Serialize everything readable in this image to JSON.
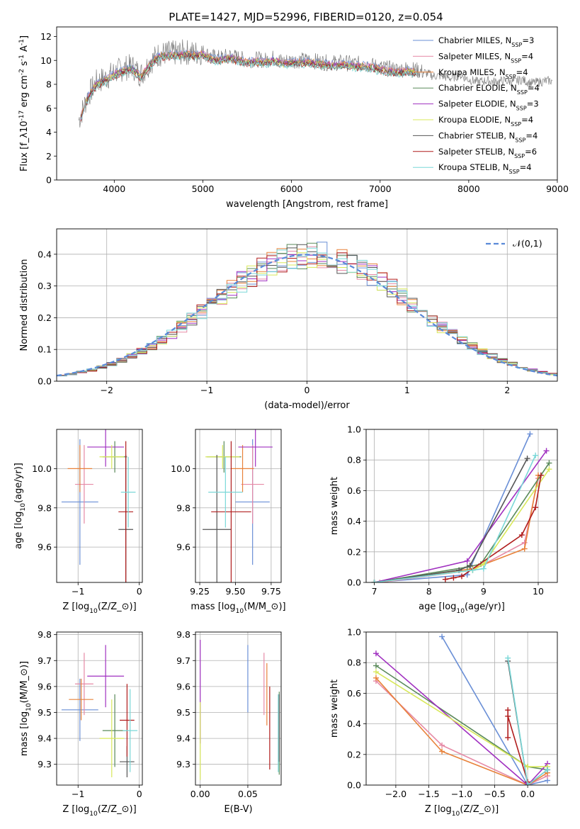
{
  "figure_title": "PLATE=1427, MJD=52996, FIBERID=0120, z=0.054",
  "models": [
    {
      "label": "Chabrier MILES, N$_{SSP}$=3",
      "color": "#6a8fd6"
    },
    {
      "label": "Salpeter MILES, N$_{SSP}$=4",
      "color": "#e68aa6"
    },
    {
      "label": "Kroupa MILES, N$_{SSP}$=4",
      "color": "#e8823a"
    },
    {
      "label": "Chabrier ELODIE, N$_{SSP}$=4",
      "color": "#5a8a5a"
    },
    {
      "label": "Salpeter ELODIE, N$_{SSP}$=3",
      "color": "#a030c0"
    },
    {
      "label": "Kroupa ELODIE, N$_{SSP}$=4",
      "color": "#d8e85a"
    },
    {
      "label": "Chabrier STELIB, N$_{SSP}$=4",
      "color": "#555555"
    },
    {
      "label": "Salpeter STELIB, N$_{SSP}$=6",
      "color": "#b01c1c"
    },
    {
      "label": "Kroupa STELIB, N$_{SSP}$=4",
      "color": "#7ad8d8"
    }
  ],
  "chart_data": [
    {
      "id": "spectrum",
      "type": "line",
      "xlabel": "wavelength [Angstrom, rest frame]",
      "ylabel": "Flux [f$_\\lambda$10$^{-17}$ erg cm$^{-2}$ s$^{-1}$ A$^{-1}$]",
      "xlim": [
        3350,
        9000
      ],
      "ylim": [
        0,
        12.8
      ],
      "xticks": [
        4000,
        5000,
        6000,
        7000,
        8000,
        9000
      ],
      "yticks": [
        0,
        2,
        4,
        6,
        8,
        10,
        12
      ],
      "legend": "top-right",
      "spectrum_points": [
        [
          3600,
          5.0
        ],
        [
          3650,
          6.0
        ],
        [
          3700,
          7.0
        ],
        [
          3800,
          8.2
        ],
        [
          3900,
          8.5
        ],
        [
          4000,
          9.0
        ],
        [
          4100,
          9.3
        ],
        [
          4200,
          9.5
        ],
        [
          4300,
          8.8
        ],
        [
          4400,
          9.8
        ],
        [
          4500,
          10.5
        ],
        [
          4600,
          10.6
        ],
        [
          4700,
          10.6
        ],
        [
          4800,
          10.7
        ],
        [
          4900,
          10.6
        ],
        [
          5000,
          10.7
        ],
        [
          5100,
          10.3
        ],
        [
          5200,
          10.2
        ],
        [
          5300,
          10.4
        ],
        [
          5400,
          10.2
        ],
        [
          5500,
          10.0
        ],
        [
          5600,
          10.1
        ],
        [
          5700,
          10.0
        ],
        [
          5800,
          10.2
        ],
        [
          5900,
          9.9
        ],
        [
          6000,
          10.0
        ],
        [
          6100,
          10.0
        ],
        [
          6200,
          10.0
        ],
        [
          6300,
          9.9
        ],
        [
          6400,
          9.8
        ],
        [
          6500,
          9.8
        ],
        [
          6600,
          9.8
        ],
        [
          6700,
          9.7
        ],
        [
          6800,
          9.7
        ],
        [
          6900,
          9.6
        ],
        [
          7000,
          9.4
        ],
        [
          7100,
          9.3
        ],
        [
          7200,
          9.2
        ],
        [
          7300,
          9.3
        ],
        [
          7400,
          9.2
        ],
        [
          7500,
          9.0
        ],
        [
          7600,
          8.7
        ],
        [
          7700,
          8.7
        ],
        [
          7800,
          8.5
        ],
        [
          7900,
          8.8
        ],
        [
          8000,
          8.4
        ],
        [
          8100,
          8.2
        ],
        [
          8200,
          8.3
        ],
        [
          8300,
          8.2
        ],
        [
          8400,
          8.3
        ],
        [
          8500,
          8.2
        ],
        [
          8600,
          8.4
        ],
        [
          8700,
          8.1
        ],
        [
          8800,
          8.2
        ],
        [
          8900,
          8.3
        ]
      ]
    },
    {
      "id": "residuals",
      "type": "line",
      "xlabel": "(data-model)/error",
      "ylabel": "Normed distribution",
      "xlim": [
        -2.5,
        2.5
      ],
      "ylim": [
        0,
        0.48
      ],
      "xticks": [
        -2,
        -1,
        0,
        1,
        2
      ],
      "yticks": [
        0.0,
        0.1,
        0.2,
        0.3,
        0.4
      ],
      "grid": true,
      "legend": "top-right",
      "legend_label": "$\\mathcal{N}(0,1)$",
      "curve_color": "#5a8ad8",
      "bin_width": 0.1
    },
    {
      "id": "age_vs_Z",
      "type": "scatter",
      "xlabel": "Z [log$_{10}$(Z/Z$_\\odot$)]",
      "ylabel": "age  [log$_{10}$(age/yr)]",
      "xlim": [
        -1.35,
        0.05
      ],
      "ylim": [
        9.42,
        10.2
      ],
      "xticks": [
        -1,
        0
      ],
      "yticks": [
        9.6,
        9.8,
        10.0
      ],
      "grid": true,
      "points": [
        {
          "model": 0,
          "x": -0.97,
          "y": 9.83,
          "xerr": 0.3,
          "yerr": 0.32
        },
        {
          "model": 1,
          "x": -0.9,
          "y": 9.92,
          "xerr": 0.15,
          "yerr": 0.2
        },
        {
          "model": 2,
          "x": -0.97,
          "y": 10.0,
          "xerr": 0.2,
          "yerr": 0.12
        },
        {
          "model": 3,
          "x": -0.4,
          "y": 10.06,
          "xerr": 0.2,
          "yerr": 0.08
        },
        {
          "model": 4,
          "x": -0.55,
          "y": 10.11,
          "xerr": 0.3,
          "yerr": 0.1
        },
        {
          "model": 5,
          "x": -0.45,
          "y": 10.06,
          "xerr": 0.2,
          "yerr": 0.06
        },
        {
          "model": 6,
          "x": -0.22,
          "y": 9.69,
          "xerr": 0.12,
          "yerr": 0.38
        },
        {
          "model": 7,
          "x": -0.22,
          "y": 9.78,
          "xerr": 0.12,
          "yerr": 0.36
        },
        {
          "model": 8,
          "x": -0.18,
          "y": 9.88,
          "xerr": 0.12,
          "yerr": 0.18
        }
      ]
    },
    {
      "id": "age_vs_mass",
      "type": "scatter",
      "xlabel": "mass [log$_{10}$(M/M$_\\odot$)]",
      "ylabel": "",
      "xlim": [
        9.22,
        9.82
      ],
      "ylim": [
        9.42,
        10.2
      ],
      "xticks": [
        9.25,
        9.5,
        9.75
      ],
      "yticks": [
        9.6,
        9.8,
        10.0
      ],
      "ytick_labels_shown": true,
      "grid": true,
      "points": [
        {
          "model": 0,
          "x": 9.62,
          "y": 9.83,
          "xerr": 0.12,
          "yerr": 0.32
        },
        {
          "model": 1,
          "x": 9.62,
          "y": 9.92,
          "xerr": 0.08,
          "yerr": 0.2
        },
        {
          "model": 2,
          "x": 9.55,
          "y": 10.0,
          "xerr": 0.08,
          "yerr": 0.12
        },
        {
          "model": 3,
          "x": 9.42,
          "y": 10.06,
          "xerr": 0.12,
          "yerr": 0.08
        },
        {
          "model": 4,
          "x": 9.64,
          "y": 10.11,
          "xerr": 0.12,
          "yerr": 0.1
        },
        {
          "model": 5,
          "x": 9.41,
          "y": 10.06,
          "xerr": 0.12,
          "yerr": 0.06
        },
        {
          "model": 6,
          "x": 9.37,
          "y": 9.69,
          "xerr": 0.1,
          "yerr": 0.38
        },
        {
          "model": 7,
          "x": 9.47,
          "y": 9.78,
          "xerr": 0.14,
          "yerr": 0.36
        },
        {
          "model": 8,
          "x": 9.43,
          "y": 9.88,
          "xerr": 0.12,
          "yerr": 0.18
        }
      ]
    },
    {
      "id": "massweight_vs_age",
      "type": "line",
      "xlabel": "age  [log$_{10}$(age/yr)]",
      "ylabel": "mass weight",
      "xlim": [
        6.85,
        10.35
      ],
      "ylim": [
        0,
        1.0
      ],
      "xticks": [
        7,
        8,
        9,
        10
      ],
      "yticks": [
        0.0,
        0.2,
        0.4,
        0.6,
        0.8,
        1.0
      ],
      "grid": true,
      "series": [
        {
          "model": 0,
          "x": [
            7.0,
            8.7,
            9.85
          ],
          "y": [
            0.0,
            0.05,
            0.97
          ]
        },
        {
          "model": 1,
          "x": [
            7.1,
            8.8,
            9.75,
            10.0
          ],
          "y": [
            0.0,
            0.08,
            0.26,
            0.68
          ]
        },
        {
          "model": 2,
          "x": [
            7.0,
            8.8,
            9.75,
            10.0
          ],
          "y": [
            0.0,
            0.09,
            0.22,
            0.7
          ]
        },
        {
          "model": 3,
          "x": [
            7.0,
            8.7,
            8.95,
            10.2
          ],
          "y": [
            0.0,
            0.1,
            0.12,
            0.78
          ]
        },
        {
          "model": 4,
          "x": [
            7.0,
            8.7,
            10.15
          ],
          "y": [
            0.0,
            0.14,
            0.86
          ]
        },
        {
          "model": 5,
          "x": [
            7.0,
            8.8,
            9.0,
            10.2
          ],
          "y": [
            0.0,
            0.08,
            0.12,
            0.74
          ]
        },
        {
          "model": 6,
          "x": [
            7.0,
            8.55,
            8.75,
            9.8
          ],
          "y": [
            0.0,
            0.08,
            0.11,
            0.81
          ]
        },
        {
          "model": 7,
          "x": [
            8.3,
            8.45,
            8.6,
            9.7,
            9.95,
            10.05
          ],
          "y": [
            0.02,
            0.03,
            0.04,
            0.31,
            0.49,
            0.7
          ]
        },
        {
          "model": 8,
          "x": [
            7.0,
            8.8,
            9.0,
            9.95
          ],
          "y": [
            0.0,
            0.08,
            0.09,
            0.83
          ]
        }
      ]
    },
    {
      "id": "mass_vs_Z",
      "type": "scatter",
      "xlabel": "Z [log$_{10}$(Z/Z$_\\odot$)]",
      "ylabel": "mass [log$_{10}$(M/M$_\\odot$)]",
      "xlim": [
        -1.35,
        0.05
      ],
      "ylim": [
        9.22,
        9.81
      ],
      "xticks": [
        -1,
        0
      ],
      "yticks": [
        9.3,
        9.4,
        9.5,
        9.6,
        9.7,
        9.8
      ],
      "grid": true,
      "points": [
        {
          "model": 0,
          "x": -0.97,
          "y": 9.51,
          "xerr": 0.3,
          "yerr": 0.12
        },
        {
          "model": 1,
          "x": -0.9,
          "y": 9.61,
          "xerr": 0.15,
          "yerr": 0.12
        },
        {
          "model": 2,
          "x": -0.95,
          "y": 9.55,
          "xerr": 0.2,
          "yerr": 0.08
        },
        {
          "model": 3,
          "x": -0.4,
          "y": 9.43,
          "xerr": 0.2,
          "yerr": 0.14
        },
        {
          "model": 4,
          "x": -0.55,
          "y": 9.64,
          "xerr": 0.3,
          "yerr": 0.12
        },
        {
          "model": 5,
          "x": -0.45,
          "y": 9.4,
          "xerr": 0.2,
          "yerr": 0.15
        },
        {
          "model": 6,
          "x": -0.2,
          "y": 9.31,
          "xerr": 0.12,
          "yerr": 0.06
        },
        {
          "model": 7,
          "x": -0.2,
          "y": 9.47,
          "xerr": 0.12,
          "yerr": 0.14
        },
        {
          "model": 8,
          "x": -0.15,
          "y": 9.43,
          "xerr": 0.12,
          "yerr": 0.16
        }
      ]
    },
    {
      "id": "mass_vs_ebv",
      "type": "scatter",
      "xlabel": "E(B-V)",
      "ylabel": "",
      "xlim": [
        -0.005,
        0.085
      ],
      "ylim": [
        9.22,
        9.81
      ],
      "xticks": [
        0.0,
        0.05
      ],
      "yticks": [
        9.3,
        9.4,
        9.5,
        9.6,
        9.7,
        9.8
      ],
      "grid": true,
      "points": [
        {
          "model": 0,
          "x": 0.05,
          "y": 9.63,
          "yerr": 0.13
        },
        {
          "model": 1,
          "x": 0.067,
          "y": 9.61,
          "yerr": 0.12
        },
        {
          "model": 2,
          "x": 0.07,
          "y": 9.57,
          "yerr": 0.12
        },
        {
          "model": 3,
          "x": 0.083,
          "y": 9.42,
          "yerr": 0.16
        },
        {
          "model": 4,
          "x": 0.0,
          "y": 9.58,
          "yerr": 0.2
        },
        {
          "model": 5,
          "x": 0.0,
          "y": 9.39,
          "yerr": 0.15
        },
        {
          "model": 6,
          "x": 0.083,
          "y": 9.44,
          "yerr": 0.13
        },
        {
          "model": 7,
          "x": 0.073,
          "y": 9.44,
          "yerr": 0.16
        },
        {
          "model": 8,
          "x": 0.082,
          "y": 9.42,
          "yerr": 0.15
        }
      ]
    },
    {
      "id": "massweight_vs_Z",
      "type": "line",
      "xlabel": "Z [log$_{10}$(Z/Z$_\\odot$)]",
      "ylabel": "mass weight",
      "xlim": [
        -2.45,
        0.45
      ],
      "ylim": [
        0,
        1.0
      ],
      "xticks": [
        -2.0,
        -1.5,
        -1.0,
        -0.5,
        0.0
      ],
      "yticks": [
        0.0,
        0.2,
        0.4,
        0.6,
        0.8,
        1.0
      ],
      "grid": true,
      "series": [
        {
          "model": 0,
          "x": [
            -1.3,
            0.0,
            0.3
          ],
          "y": [
            0.97,
            0.0,
            0.03
          ]
        },
        {
          "model": 1,
          "x": [
            -2.3,
            -1.3,
            0.0,
            0.3
          ],
          "y": [
            0.68,
            0.26,
            0.0,
            0.06
          ]
        },
        {
          "model": 2,
          "x": [
            -2.3,
            -1.3,
            0.0,
            0.3
          ],
          "y": [
            0.7,
            0.22,
            0.0,
            0.08
          ]
        },
        {
          "model": 3,
          "x": [
            -2.3,
            0.0,
            0.3
          ],
          "y": [
            0.78,
            0.12,
            0.1
          ]
        },
        {
          "model": 4,
          "x": [
            -2.3,
            0.0,
            0.3
          ],
          "y": [
            0.86,
            0.0,
            0.14
          ]
        },
        {
          "model": 5,
          "x": [
            -2.3,
            0.0,
            0.3
          ],
          "y": [
            0.74,
            0.12,
            0.12
          ]
        },
        {
          "model": 6,
          "x": [
            -0.3,
            0.0,
            0.3
          ],
          "y": [
            0.81,
            0.0,
            0.1
          ]
        },
        {
          "model": 7,
          "x": [
            -0.3,
            -0.3,
            -0.3,
            0.0
          ],
          "y": [
            0.31,
            0.49,
            0.45,
            0.02
          ]
        },
        {
          "model": 8,
          "x": [
            -0.3,
            0.0,
            0.3
          ],
          "y": [
            0.83,
            0.0,
            0.1
          ]
        }
      ]
    }
  ]
}
